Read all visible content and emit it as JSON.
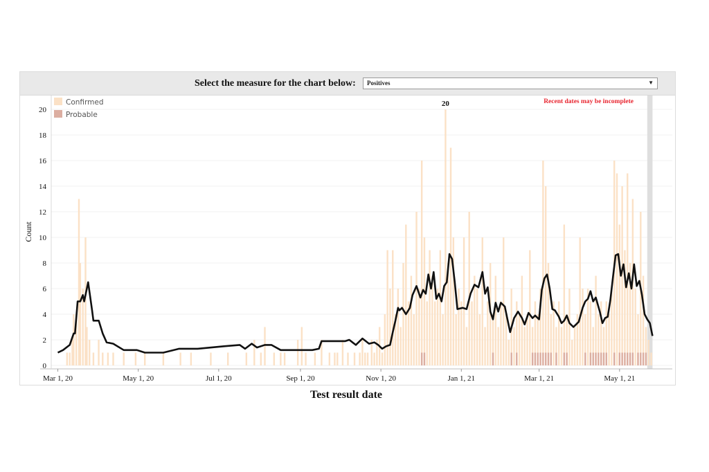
{
  "control": {
    "label": "Select the measure for the chart below:",
    "selected": "Positives",
    "arrow_icon": "triangle-down-icon"
  },
  "chart_data": {
    "type": "bar",
    "title": "",
    "xlabel": "Test result date",
    "ylabel": "Count",
    "ylim": [
      0,
      21
    ],
    "yticks": [
      0,
      2,
      4,
      6,
      8,
      10,
      12,
      14,
      16,
      18,
      20
    ],
    "xticks": [
      {
        "date": "2020-03-01",
        "label": "Mar 1, 20"
      },
      {
        "date": "2020-05-01",
        "label": "May 1, 20"
      },
      {
        "date": "2020-07-01",
        "label": "Jul 1, 20"
      },
      {
        "date": "2020-09-01",
        "label": "Sep 1, 20"
      },
      {
        "date": "2020-11-01",
        "label": "Nov 1, 20"
      },
      {
        "date": "2021-01-01",
        "label": "Jan 1, 21"
      },
      {
        "date": "2021-03-01",
        "label": "Mar 1, 21"
      },
      {
        "date": "2021-05-01",
        "label": "May 1, 21"
      }
    ],
    "xlim": [
      "2020-02-25",
      "2021-06-10"
    ],
    "legend": {
      "position": "top-left",
      "items": [
        {
          "name": "Confirmed",
          "color": "#fbe1c6"
        },
        {
          "name": "Probable",
          "color": "#dcaea1"
        }
      ]
    },
    "annotations": [
      {
        "text": "20",
        "date": "2020-12-20",
        "value": 20
      },
      {
        "text": "Recent dates may be incomplete",
        "color": "#e8252f",
        "position": "top-right"
      }
    ],
    "incomplete_region": {
      "start": "2021-05-22",
      "end": "2021-05-26",
      "color": "#dedede"
    },
    "confirmed_series": [
      [
        "2020-03-08",
        1
      ],
      [
        "2020-03-10",
        1
      ],
      [
        "2020-03-12",
        2
      ],
      [
        "2020-03-13",
        4
      ],
      [
        "2020-03-15",
        4
      ],
      [
        "2020-03-17",
        13
      ],
      [
        "2020-03-18",
        8
      ],
      [
        "2020-03-20",
        6
      ],
      [
        "2020-03-22",
        10
      ],
      [
        "2020-03-23",
        3
      ],
      [
        "2020-03-25",
        2
      ],
      [
        "2020-03-28",
        1
      ],
      [
        "2020-04-01",
        2
      ],
      [
        "2020-04-04",
        1
      ],
      [
        "2020-04-08",
        1
      ],
      [
        "2020-04-12",
        1
      ],
      [
        "2020-04-20",
        1
      ],
      [
        "2020-04-29",
        1
      ],
      [
        "2020-05-06",
        1
      ],
      [
        "2020-05-20",
        1
      ],
      [
        "2020-06-02",
        1
      ],
      [
        "2020-06-10",
        1
      ],
      [
        "2020-06-25",
        1
      ],
      [
        "2020-07-08",
        1
      ],
      [
        "2020-07-22",
        1
      ],
      [
        "2020-07-28",
        2
      ],
      [
        "2020-08-02",
        1
      ],
      [
        "2020-08-05",
        3
      ],
      [
        "2020-08-12",
        1
      ],
      [
        "2020-08-17",
        1
      ],
      [
        "2020-08-20",
        1
      ],
      [
        "2020-08-30",
        2
      ],
      [
        "2020-09-02",
        3
      ],
      [
        "2020-09-05",
        1
      ],
      [
        "2020-09-12",
        1
      ],
      [
        "2020-09-17",
        2
      ],
      [
        "2020-09-23",
        1
      ],
      [
        "2020-09-27",
        1
      ],
      [
        "2020-09-29",
        1
      ],
      [
        "2020-10-03",
        2
      ],
      [
        "2020-10-07",
        1
      ],
      [
        "2020-10-12",
        1
      ],
      [
        "2020-10-16",
        1
      ],
      [
        "2020-10-18",
        2
      ],
      [
        "2020-10-20",
        1
      ],
      [
        "2020-10-22",
        1
      ],
      [
        "2020-10-25",
        2
      ],
      [
        "2020-10-27",
        1
      ],
      [
        "2020-10-29",
        2
      ],
      [
        "2020-10-31",
        3
      ],
      [
        "2020-11-02",
        1
      ],
      [
        "2020-11-04",
        4
      ],
      [
        "2020-11-06",
        9
      ],
      [
        "2020-11-08",
        6
      ],
      [
        "2020-11-10",
        9
      ],
      [
        "2020-11-12",
        4
      ],
      [
        "2020-11-14",
        6
      ],
      [
        "2020-11-16",
        3
      ],
      [
        "2020-11-18",
        8
      ],
      [
        "2020-11-20",
        11
      ],
      [
        "2020-11-22",
        5
      ],
      [
        "2020-11-24",
        7
      ],
      [
        "2020-11-26",
        4
      ],
      [
        "2020-11-28",
        12
      ],
      [
        "2020-11-30",
        6
      ],
      [
        "2020-12-02",
        16
      ],
      [
        "2020-12-04",
        10
      ],
      [
        "2020-12-06",
        5
      ],
      [
        "2020-12-08",
        9
      ],
      [
        "2020-12-10",
        7
      ],
      [
        "2020-12-12",
        5
      ],
      [
        "2020-12-14",
        6
      ],
      [
        "2020-12-16",
        9
      ],
      [
        "2020-12-18",
        4
      ],
      [
        "2020-12-20",
        20
      ],
      [
        "2020-12-22",
        8
      ],
      [
        "2020-12-24",
        17
      ],
      [
        "2020-12-26",
        10
      ],
      [
        "2020-12-28",
        4
      ],
      [
        "2020-12-30",
        6
      ],
      [
        "2021-01-01",
        5
      ],
      [
        "2021-01-03",
        10
      ],
      [
        "2021-01-05",
        3
      ],
      [
        "2021-01-07",
        12
      ],
      [
        "2021-01-09",
        5
      ],
      [
        "2021-01-11",
        7
      ],
      [
        "2021-01-13",
        6
      ],
      [
        "2021-01-15",
        4
      ],
      [
        "2021-01-17",
        10
      ],
      [
        "2021-01-19",
        3
      ],
      [
        "2021-01-21",
        5
      ],
      [
        "2021-01-23",
        8
      ],
      [
        "2021-01-25",
        4
      ],
      [
        "2021-01-27",
        7
      ],
      [
        "2021-01-29",
        3
      ],
      [
        "2021-01-31",
        5
      ],
      [
        "2021-02-02",
        10
      ],
      [
        "2021-02-04",
        4
      ],
      [
        "2021-02-06",
        2
      ],
      [
        "2021-02-08",
        6
      ],
      [
        "2021-02-10",
        3
      ],
      [
        "2021-02-12",
        5
      ],
      [
        "2021-02-14",
        4
      ],
      [
        "2021-02-16",
        7
      ],
      [
        "2021-02-18",
        3
      ],
      [
        "2021-02-20",
        4
      ],
      [
        "2021-02-22",
        9
      ],
      [
        "2021-02-24",
        3
      ],
      [
        "2021-02-26",
        5
      ],
      [
        "2021-02-28",
        4
      ],
      [
        "2021-03-02",
        6
      ],
      [
        "2021-03-04",
        16
      ],
      [
        "2021-03-06",
        14
      ],
      [
        "2021-03-08",
        8
      ],
      [
        "2021-03-10",
        4
      ],
      [
        "2021-03-12",
        5
      ],
      [
        "2021-03-14",
        3
      ],
      [
        "2021-03-16",
        5
      ],
      [
        "2021-03-18",
        3
      ],
      [
        "2021-03-20",
        11
      ],
      [
        "2021-03-22",
        4
      ],
      [
        "2021-03-24",
        6
      ],
      [
        "2021-03-26",
        2
      ],
      [
        "2021-03-28",
        3
      ],
      [
        "2021-03-30",
        4
      ],
      [
        "2021-04-01",
        10
      ],
      [
        "2021-04-03",
        6
      ],
      [
        "2021-04-05",
        4
      ],
      [
        "2021-04-07",
        6
      ],
      [
        "2021-04-09",
        5
      ],
      [
        "2021-04-11",
        3
      ],
      [
        "2021-04-13",
        7
      ],
      [
        "2021-04-15",
        4
      ],
      [
        "2021-04-17",
        5
      ],
      [
        "2021-04-19",
        3
      ],
      [
        "2021-04-21",
        5
      ],
      [
        "2021-04-23",
        4
      ],
      [
        "2021-04-25",
        6
      ],
      [
        "2021-04-27",
        16
      ],
      [
        "2021-04-29",
        15
      ],
      [
        "2021-05-01",
        11
      ],
      [
        "2021-05-03",
        14
      ],
      [
        "2021-05-05",
        9
      ],
      [
        "2021-05-07",
        15
      ],
      [
        "2021-05-09",
        8
      ],
      [
        "2021-05-11",
        13
      ],
      [
        "2021-05-13",
        6
      ],
      [
        "2021-05-15",
        4
      ],
      [
        "2021-05-17",
        12
      ],
      [
        "2021-05-19",
        7
      ],
      [
        "2021-05-21",
        3
      ],
      [
        "2021-05-23",
        2
      ],
      [
        "2021-05-25",
        1
      ]
    ],
    "probable_series": [
      [
        "2020-12-02",
        1
      ],
      [
        "2020-12-04",
        1
      ],
      [
        "2021-01-25",
        1
      ],
      [
        "2021-02-08",
        1
      ],
      [
        "2021-02-12",
        1
      ],
      [
        "2021-02-24",
        1
      ],
      [
        "2021-02-26",
        1
      ],
      [
        "2021-02-28",
        1
      ],
      [
        "2021-03-02",
        1
      ],
      [
        "2021-03-04",
        1
      ],
      [
        "2021-03-06",
        1
      ],
      [
        "2021-03-08",
        1
      ],
      [
        "2021-03-10",
        1
      ],
      [
        "2021-03-14",
        1
      ],
      [
        "2021-03-20",
        1
      ],
      [
        "2021-03-22",
        1
      ],
      [
        "2021-04-05",
        1
      ],
      [
        "2021-04-09",
        1
      ],
      [
        "2021-04-11",
        1
      ],
      [
        "2021-04-13",
        1
      ],
      [
        "2021-04-15",
        1
      ],
      [
        "2021-04-17",
        1
      ],
      [
        "2021-04-19",
        1
      ],
      [
        "2021-04-21",
        1
      ],
      [
        "2021-04-27",
        1
      ],
      [
        "2021-05-01",
        1
      ],
      [
        "2021-05-03",
        1
      ],
      [
        "2021-05-05",
        1
      ],
      [
        "2021-05-07",
        1
      ],
      [
        "2021-05-09",
        1
      ],
      [
        "2021-05-11",
        1
      ],
      [
        "2021-05-15",
        1
      ],
      [
        "2021-05-17",
        1
      ],
      [
        "2021-05-19",
        1
      ],
      [
        "2021-05-21",
        1
      ]
    ],
    "average_line": [
      [
        "2020-03-01",
        1
      ],
      [
        "2020-03-05",
        1.2
      ],
      [
        "2020-03-10",
        1.6
      ],
      [
        "2020-03-13",
        2.5
      ],
      [
        "2020-03-14",
        2.5
      ],
      [
        "2020-03-16",
        5
      ],
      [
        "2020-03-18",
        5
      ],
      [
        "2020-03-20",
        5.5
      ],
      [
        "2020-03-21",
        5
      ],
      [
        "2020-03-24",
        6.5
      ],
      [
        "2020-03-27",
        4.3
      ],
      [
        "2020-03-28",
        3.5
      ],
      [
        "2020-04-01",
        3.5
      ],
      [
        "2020-04-04",
        2.5
      ],
      [
        "2020-04-07",
        1.8
      ],
      [
        "2020-04-12",
        1.7
      ],
      [
        "2020-04-20",
        1.2
      ],
      [
        "2020-04-30",
        1.2
      ],
      [
        "2020-05-06",
        1
      ],
      [
        "2020-05-20",
        1
      ],
      [
        "2020-06-01",
        1.3
      ],
      [
        "2020-06-15",
        1.3
      ],
      [
        "2020-07-05",
        1.5
      ],
      [
        "2020-07-17",
        1.6
      ],
      [
        "2020-07-21",
        1.3
      ],
      [
        "2020-07-26",
        1.7
      ],
      [
        "2020-07-30",
        1.4
      ],
      [
        "2020-08-05",
        1.6
      ],
      [
        "2020-08-10",
        1.6
      ],
      [
        "2020-08-17",
        1.2
      ],
      [
        "2020-09-01",
        1.2
      ],
      [
        "2020-09-10",
        1.2
      ],
      [
        "2020-09-15",
        1.3
      ],
      [
        "2020-09-17",
        1.9
      ],
      [
        "2020-09-25",
        1.9
      ],
      [
        "2020-10-05",
        1.9
      ],
      [
        "2020-10-08",
        2
      ],
      [
        "2020-10-13",
        1.6
      ],
      [
        "2020-10-18",
        2.1
      ],
      [
        "2020-10-23",
        1.7
      ],
      [
        "2020-10-27",
        1.8
      ],
      [
        "2020-10-30",
        1.6
      ],
      [
        "2020-11-02",
        1.3
      ],
      [
        "2020-11-05",
        1.5
      ],
      [
        "2020-11-08",
        1.6
      ],
      [
        "2020-11-10",
        2.6
      ],
      [
        "2020-11-12",
        3.5
      ],
      [
        "2020-11-14",
        4.5
      ],
      [
        "2020-11-15",
        4.3
      ],
      [
        "2020-11-17",
        4.5
      ],
      [
        "2020-11-20",
        4
      ],
      [
        "2020-11-23",
        4.5
      ],
      [
        "2020-11-25",
        5.5
      ],
      [
        "2020-11-28",
        6.2
      ],
      [
        "2020-12-01",
        5.3
      ],
      [
        "2020-12-03",
        5.9
      ],
      [
        "2020-12-05",
        5.6
      ],
      [
        "2020-12-07",
        7.1
      ],
      [
        "2020-12-09",
        6
      ],
      [
        "2020-12-11",
        7.3
      ],
      [
        "2020-12-13",
        5.2
      ],
      [
        "2020-12-15",
        5.6
      ],
      [
        "2020-12-17",
        5
      ],
      [
        "2020-12-19",
        6.2
      ],
      [
        "2020-12-21",
        6.5
      ],
      [
        "2020-12-23",
        8.7
      ],
      [
        "2020-12-25",
        8.3
      ],
      [
        "2020-12-27",
        6.5
      ],
      [
        "2020-12-29",
        4.4
      ],
      [
        "2021-01-02",
        4.5
      ],
      [
        "2021-01-05",
        4.4
      ],
      [
        "2021-01-08",
        5.6
      ],
      [
        "2021-01-11",
        6.3
      ],
      [
        "2021-01-14",
        6.1
      ],
      [
        "2021-01-17",
        7.3
      ],
      [
        "2021-01-19",
        5.6
      ],
      [
        "2021-01-21",
        6.1
      ],
      [
        "2021-01-23",
        4.2
      ],
      [
        "2021-01-25",
        3.6
      ],
      [
        "2021-01-27",
        4.9
      ],
      [
        "2021-01-29",
        4.2
      ],
      [
        "2021-01-31",
        4.9
      ],
      [
        "2021-02-03",
        4.6
      ],
      [
        "2021-02-05",
        3.6
      ],
      [
        "2021-02-07",
        2.6
      ],
      [
        "2021-02-10",
        3.7
      ],
      [
        "2021-02-13",
        4.2
      ],
      [
        "2021-02-16",
        3.7
      ],
      [
        "2021-02-18",
        3.2
      ],
      [
        "2021-02-21",
        4.1
      ],
      [
        "2021-02-24",
        3.7
      ],
      [
        "2021-02-26",
        3.9
      ],
      [
        "2021-03-01",
        3.6
      ],
      [
        "2021-03-03",
        5.9
      ],
      [
        "2021-03-05",
        6.8
      ],
      [
        "2021-03-07",
        7.1
      ],
      [
        "2021-03-09",
        6
      ],
      [
        "2021-03-11",
        4.4
      ],
      [
        "2021-03-13",
        4.3
      ],
      [
        "2021-03-16",
        3.8
      ],
      [
        "2021-03-18",
        3.3
      ],
      [
        "2021-03-20",
        3.5
      ],
      [
        "2021-03-22",
        3.9
      ],
      [
        "2021-03-24",
        3.3
      ],
      [
        "2021-03-27",
        3
      ],
      [
        "2021-03-29",
        3.2
      ],
      [
        "2021-03-31",
        3.4
      ],
      [
        "2021-04-03",
        4.5
      ],
      [
        "2021-04-05",
        5
      ],
      [
        "2021-04-07",
        5.2
      ],
      [
        "2021-04-09",
        5.8
      ],
      [
        "2021-04-11",
        5
      ],
      [
        "2021-04-13",
        5.3
      ],
      [
        "2021-04-16",
        4.2
      ],
      [
        "2021-04-18",
        3.3
      ],
      [
        "2021-04-20",
        3.7
      ],
      [
        "2021-04-22",
        3.8
      ],
      [
        "2021-04-24",
        5.1
      ],
      [
        "2021-04-26",
        6.9
      ],
      [
        "2021-04-28",
        8.6
      ],
      [
        "2021-04-30",
        8.7
      ],
      [
        "2021-05-02",
        7
      ],
      [
        "2021-05-04",
        7.9
      ],
      [
        "2021-05-06",
        6.1
      ],
      [
        "2021-05-08",
        7.2
      ],
      [
        "2021-05-10",
        6
      ],
      [
        "2021-05-12",
        7.9
      ],
      [
        "2021-05-14",
        6.2
      ],
      [
        "2021-05-16",
        6.6
      ],
      [
        "2021-05-18",
        5.5
      ],
      [
        "2021-05-20",
        4
      ],
      [
        "2021-05-22",
        3.6
      ],
      [
        "2021-05-24",
        3.3
      ],
      [
        "2021-05-26",
        2.3
      ]
    ]
  }
}
